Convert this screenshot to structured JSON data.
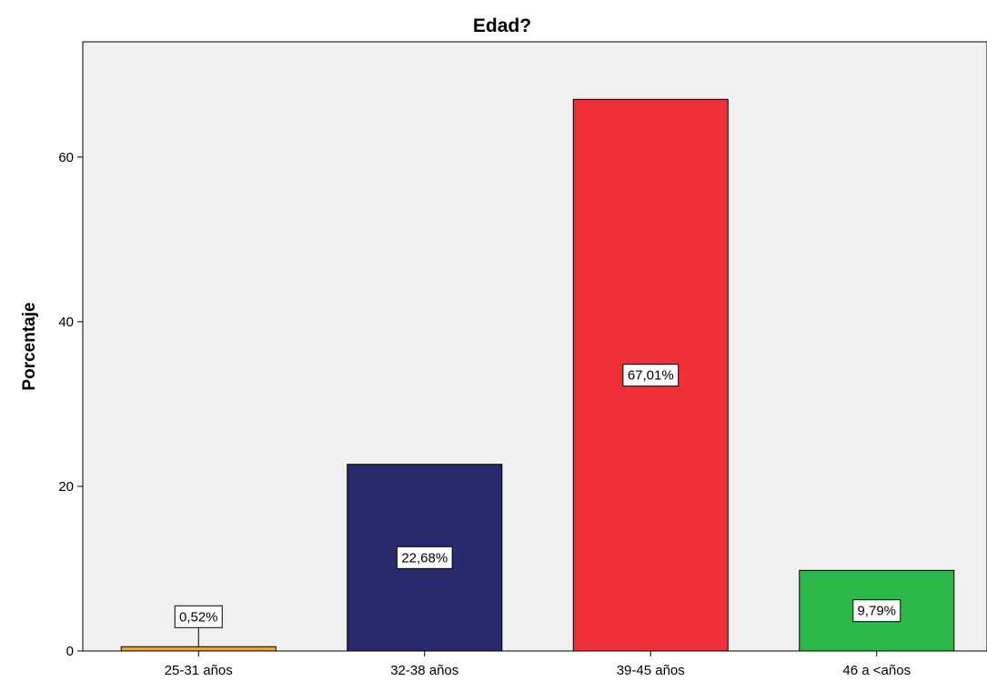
{
  "chart_data": {
    "type": "bar",
    "title": "Edad?",
    "xlabel": "",
    "ylabel": "Porcentaje",
    "categories": [
      "25-31 años",
      "32-38 años",
      "39-45 años",
      "46 a <años"
    ],
    "values": [
      0.52,
      22.68,
      67.01,
      9.79
    ],
    "data_labels": [
      "0,52%",
      "22,68%",
      "67,01%",
      "9,79%"
    ],
    "colors": [
      "#E8A33A",
      "#29296E",
      "#EF3038",
      "#2DB84A"
    ],
    "yticks": [
      0,
      20,
      40,
      60
    ],
    "ylim": [
      0,
      74
    ],
    "grid": false,
    "background": "#F0F0F0"
  }
}
